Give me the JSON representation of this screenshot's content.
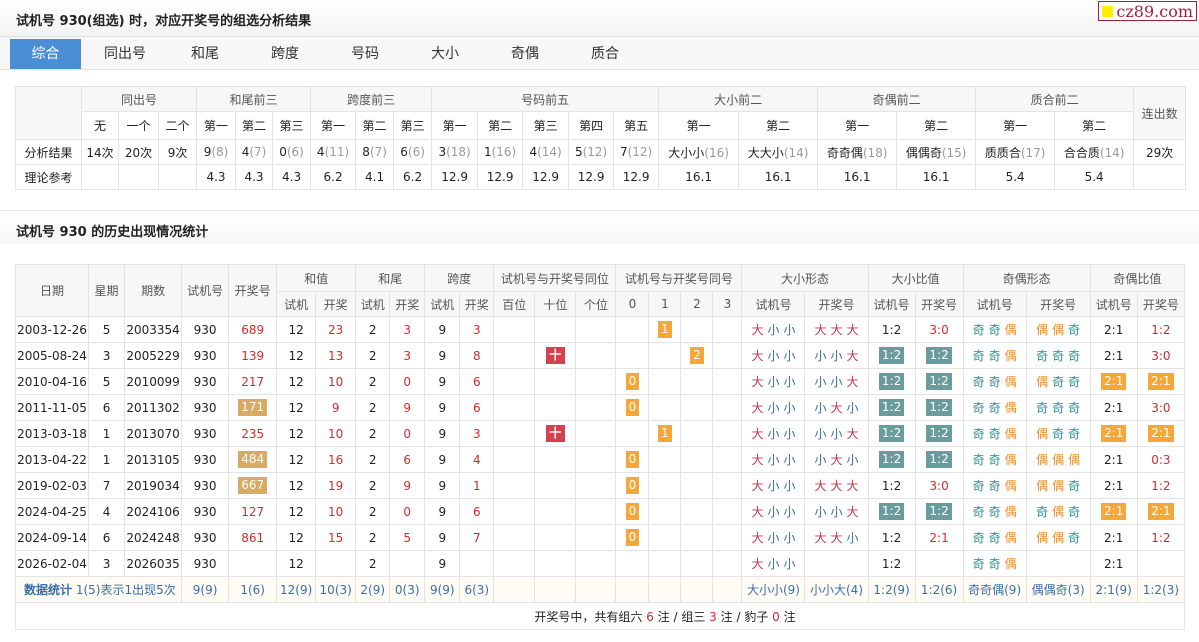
{
  "header": {
    "title": "试机号 930(组选) 时，对应开奖号的组选分析结果",
    "logo": "cz89.com"
  },
  "tabs": [
    {
      "label": "综合",
      "active": true
    },
    {
      "label": "同出号"
    },
    {
      "label": "和尾"
    },
    {
      "label": "跨度"
    },
    {
      "label": "号码"
    },
    {
      "label": "大小"
    },
    {
      "label": "奇偶"
    },
    {
      "label": "质合"
    }
  ],
  "summary": {
    "groups": [
      "同出号",
      "和尾前三",
      "跨度前三",
      "号码前五",
      "大小前二",
      "奇偶前二",
      "质合前二"
    ],
    "last_col": "连出数",
    "subheads": [
      "无",
      "一个",
      "二个",
      "第一",
      "第二",
      "第三",
      "第一",
      "第二",
      "第三",
      "第一",
      "第二",
      "第三",
      "第四",
      "第五",
      "第一",
      "第二",
      "第一",
      "第二",
      "第一",
      "第二"
    ],
    "row1_label": "分析结果",
    "row1": [
      [
        "14次",
        ""
      ],
      [
        "20次",
        ""
      ],
      [
        "9次",
        ""
      ],
      [
        "9",
        "(8)"
      ],
      [
        "4",
        "(7)"
      ],
      [
        "0",
        "(6)"
      ],
      [
        "4",
        "(11)"
      ],
      [
        "8",
        "(7)"
      ],
      [
        "6",
        "(6)"
      ],
      [
        "3",
        "(18)"
      ],
      [
        "1",
        "(16)"
      ],
      [
        "4",
        "(14)"
      ],
      [
        "5",
        "(12)"
      ],
      [
        "7",
        "(12)"
      ],
      [
        "大小小",
        "(16)"
      ],
      [
        "大大小",
        "(14)"
      ],
      [
        "奇奇偶",
        "(18)"
      ],
      [
        "偶偶奇",
        "(15)"
      ],
      [
        "质质合",
        "(17)"
      ],
      [
        "合合质",
        "(14)"
      ],
      [
        "29次",
        ""
      ]
    ],
    "row2_label": "理论参考",
    "row2": [
      "",
      "",
      "",
      "4.3",
      "4.3",
      "4.3",
      "6.2",
      "4.1",
      "6.2",
      "12.9",
      "12.9",
      "12.9",
      "12.9",
      "12.9",
      "16.1",
      "16.1",
      "16.1",
      "16.1",
      "5.4",
      "5.4",
      ""
    ]
  },
  "history": {
    "title": "试机号 930 的历史出现情况统计",
    "head1": [
      "日期",
      "星期",
      "期数",
      "试机号",
      "开奖号",
      "和值",
      "和尾",
      "跨度",
      "试机号与开奖号同位",
      "试机号与开奖号同号",
      "大小形态",
      "大小比值",
      "奇偶形态",
      "奇偶比值"
    ],
    "head2": [
      "试机",
      "开奖",
      "试机",
      "开奖",
      "试机",
      "开奖",
      "百位",
      "十位",
      "个位",
      "0",
      "1",
      "2",
      "3",
      "试机号",
      "开奖号",
      "试机号",
      "开奖号",
      "试机号",
      "开奖号",
      "试机号",
      "开奖号"
    ],
    "pos_mark": "十",
    "rows": [
      {
        "date": "2003-12-26",
        "week": "5",
        "issue": "2003354",
        "sj": "930",
        "kj": "689",
        "kj_hl": "",
        "hz": [
          "12",
          "23"
        ],
        "hw": [
          "2",
          "3"
        ],
        "kd": [
          "9",
          "3"
        ],
        "pos": "",
        "same": [
          1,
          "1"
        ],
        "dx": [
          "大小小",
          "大大大"
        ],
        "dxb": [
          "1:2",
          "3:0"
        ],
        "dxb_hl": false,
        "jo": [
          "奇奇偶",
          "偶偶奇"
        ],
        "job": [
          "2:1",
          "1:2"
        ],
        "job_hl": false
      },
      {
        "date": "2005-08-24",
        "week": "3",
        "issue": "2005229",
        "sj": "930",
        "kj": "139",
        "kj_hl": "",
        "hz": [
          "12",
          "13"
        ],
        "hw": [
          "2",
          "3"
        ],
        "kd": [
          "9",
          "8"
        ],
        "pos": "十",
        "same": [
          2,
          "2"
        ],
        "dx": [
          "大小小",
          "小小大"
        ],
        "dxb": [
          "1:2",
          "1:2"
        ],
        "dxb_hl": true,
        "jo": [
          "奇奇偶",
          "奇奇奇"
        ],
        "job": [
          "2:1",
          "3:0"
        ],
        "job_hl": false
      },
      {
        "date": "2010-04-16",
        "week": "5",
        "issue": "2010099",
        "sj": "930",
        "kj": "217",
        "kj_hl": "",
        "hz": [
          "12",
          "10"
        ],
        "hw": [
          "2",
          "0"
        ],
        "kd": [
          "9",
          "6"
        ],
        "pos": "",
        "same": [
          0,
          "0"
        ],
        "dx": [
          "大小小",
          "小小大"
        ],
        "dxb": [
          "1:2",
          "1:2"
        ],
        "dxb_hl": true,
        "jo": [
          "奇奇偶",
          "偶奇奇"
        ],
        "job": [
          "2:1",
          "2:1"
        ],
        "job_hl": true
      },
      {
        "date": "2011-11-05",
        "week": "6",
        "issue": "2011302",
        "sj": "930",
        "kj": "171",
        "kj_hl": "tan",
        "hz": [
          "12",
          "9"
        ],
        "hw": [
          "2",
          "9"
        ],
        "kd": [
          "9",
          "6"
        ],
        "pos": "",
        "same": [
          0,
          "0"
        ],
        "dx": [
          "大小小",
          "小大小"
        ],
        "dxb": [
          "1:2",
          "1:2"
        ],
        "dxb_hl": true,
        "jo": [
          "奇奇偶",
          "奇奇奇"
        ],
        "job": [
          "2:1",
          "3:0"
        ],
        "job_hl": false
      },
      {
        "date": "2013-03-18",
        "week": "1",
        "issue": "2013070",
        "sj": "930",
        "kj": "235",
        "kj_hl": "",
        "hz": [
          "12",
          "10"
        ],
        "hw": [
          "2",
          "0"
        ],
        "kd": [
          "9",
          "3"
        ],
        "pos": "十",
        "same": [
          1,
          "1"
        ],
        "dx": [
          "大小小",
          "小小大"
        ],
        "dxb": [
          "1:2",
          "1:2"
        ],
        "dxb_hl": true,
        "jo": [
          "奇奇偶",
          "偶奇奇"
        ],
        "job": [
          "2:1",
          "2:1"
        ],
        "job_hl": true
      },
      {
        "date": "2013-04-22",
        "week": "1",
        "issue": "2013105",
        "sj": "930",
        "kj": "484",
        "kj_hl": "tan",
        "hz": [
          "12",
          "16"
        ],
        "hw": [
          "2",
          "6"
        ],
        "kd": [
          "9",
          "4"
        ],
        "pos": "",
        "same": [
          0,
          "0"
        ],
        "dx": [
          "大小小",
          "小大小"
        ],
        "dxb": [
          "1:2",
          "1:2"
        ],
        "dxb_hl": true,
        "jo": [
          "奇奇偶",
          "偶偶偶"
        ],
        "job": [
          "2:1",
          "0:3"
        ],
        "job_hl": false
      },
      {
        "date": "2019-02-03",
        "week": "7",
        "issue": "2019034",
        "sj": "930",
        "kj": "667",
        "kj_hl": "tan",
        "hz": [
          "12",
          "19"
        ],
        "hw": [
          "2",
          "9"
        ],
        "kd": [
          "9",
          "1"
        ],
        "pos": "",
        "same": [
          0,
          "0"
        ],
        "dx": [
          "大小小",
          "大大大"
        ],
        "dxb": [
          "1:2",
          "3:0"
        ],
        "dxb_hl": false,
        "jo": [
          "奇奇偶",
          "偶偶奇"
        ],
        "job": [
          "2:1",
          "1:2"
        ],
        "job_hl": false
      },
      {
        "date": "2024-04-25",
        "week": "4",
        "issue": "2024106",
        "sj": "930",
        "kj": "127",
        "kj_hl": "",
        "hz": [
          "12",
          "10"
        ],
        "hw": [
          "2",
          "0"
        ],
        "kd": [
          "9",
          "6"
        ],
        "pos": "",
        "same": [
          0,
          "0"
        ],
        "dx": [
          "大小小",
          "小小大"
        ],
        "dxb": [
          "1:2",
          "1:2"
        ],
        "dxb_hl": true,
        "jo": [
          "奇奇偶",
          "奇偶奇"
        ],
        "job": [
          "2:1",
          "2:1"
        ],
        "job_hl": true
      },
      {
        "date": "2024-09-14",
        "week": "6",
        "issue": "2024248",
        "sj": "930",
        "kj": "861",
        "kj_hl": "",
        "hz": [
          "12",
          "15"
        ],
        "hw": [
          "2",
          "5"
        ],
        "kd": [
          "9",
          "7"
        ],
        "pos": "",
        "same": [
          0,
          "0"
        ],
        "dx": [
          "大小小",
          "大大小"
        ],
        "dxb": [
          "1:2",
          "2:1"
        ],
        "dxb_hl": false,
        "jo": [
          "奇奇偶",
          "偶偶奇"
        ],
        "job": [
          "2:1",
          "1:2"
        ],
        "job_hl": false
      },
      {
        "date": "2026-02-04",
        "week": "3",
        "issue": "2026035",
        "sj": "930",
        "kj": "",
        "kj_hl": "",
        "hz": [
          "12",
          ""
        ],
        "hw": [
          "2",
          ""
        ],
        "kd": [
          "9",
          ""
        ],
        "pos": "",
        "same": null,
        "dx": [
          "大小小",
          ""
        ],
        "dxb": [
          "1:2",
          ""
        ],
        "dxb_hl": false,
        "jo": [
          "奇奇偶",
          ""
        ],
        "job": [
          "2:1",
          ""
        ],
        "job_hl": false
      }
    ],
    "stats": {
      "label": "数据统计",
      "note": "1(5)表示1出现5次",
      "values": [
        "9(9)",
        "1(6)",
        "12(9)",
        "10(3)",
        "2(9)",
        "0(3)",
        "9(9)",
        "6(3)",
        "",
        "",
        "",
        "",
        "",
        "",
        "",
        "大小小(9)",
        "小小大(4)",
        "1:2(9)",
        "1:2(6)",
        "奇奇偶(9)",
        "偶偶奇(3)",
        "2:1(9)",
        "1:2(3)"
      ]
    },
    "footer": {
      "prefix": "开奖号中，共有组六",
      "z6": "6",
      "mid1": "注 / 组三",
      "z3": "3",
      "mid2": "注 / 豹子",
      "bz": "0",
      "suffix": "注"
    }
  },
  "colors": {
    "accent": "#4a8fd6",
    "badge_orange": "#f7a738",
    "badge_tan": "#d9aa62",
    "badge_teal": "#6a9c9d",
    "badge_red": "#d2434f",
    "text_red": "#d12b2b"
  }
}
